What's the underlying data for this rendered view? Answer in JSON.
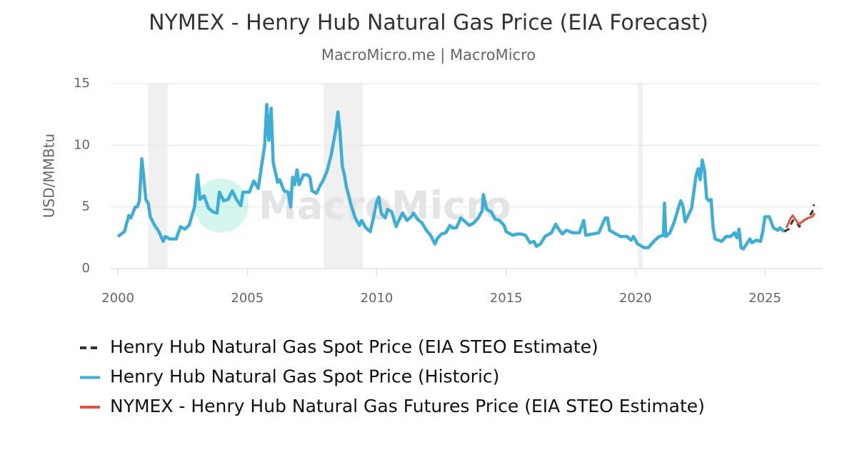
{
  "chart_data": {
    "type": "line",
    "title": "NYMEX - Henry Hub Natural Gas Price (EIA Forecast)",
    "subtitle": "MacroMicro.me | MacroMicro",
    "watermark": "MacroMicro",
    "y_label": "USD/MMBtu",
    "xlim": [
      1999.72,
      2027.18
    ],
    "xticks": [
      2000,
      2005,
      2010,
      2015,
      2020,
      2025
    ],
    "ylim": [
      0,
      15
    ],
    "yticks": [
      0,
      5,
      10,
      15
    ],
    "grid": true,
    "shaded_periods": [
      [
        2001.17,
        2001.92
      ],
      [
        2007.95,
        2009.46
      ],
      [
        2020.09,
        2020.28
      ]
    ],
    "series": [
      {
        "name": "Henry Hub Natural Gas Spot Price (EIA STEO Estimate)",
        "color": "#333333",
        "style": "dashed",
        "x": [
          2025.75,
          2025.92,
          2026.08,
          2026.25,
          2026.33,
          2026.5,
          2026.67,
          2026.83,
          2026.9
        ],
        "values": [
          3.0,
          3.2,
          3.9,
          3.7,
          3.4,
          3.9,
          4.1,
          4.6,
          5.2
        ]
      },
      {
        "name": "Henry Hub Natural Gas Spot Price (Historic)",
        "color": "#3eaed6",
        "style": "solid",
        "x": [
          2000.0,
          2000.25,
          2000.42,
          2000.5,
          2000.67,
          2000.75,
          2000.83,
          2000.92,
          2000.96,
          2001.08,
          2001.17,
          2001.25,
          2001.42,
          2001.58,
          2001.75,
          2001.83,
          2002.0,
          2002.25,
          2002.42,
          2002.58,
          2002.75,
          2002.83,
          2002.96,
          2003.08,
          2003.17,
          2003.33,
          2003.5,
          2003.67,
          2003.83,
          2003.92,
          2004.08,
          2004.25,
          2004.42,
          2004.58,
          2004.75,
          2004.83,
          2004.92,
          2005.08,
          2005.25,
          2005.42,
          2005.5,
          2005.67,
          2005.75,
          2005.83,
          2005.92,
          2006.0,
          2006.17,
          2006.25,
          2006.42,
          2006.58,
          2006.67,
          2006.75,
          2006.83,
          2006.92,
          2007.0,
          2007.17,
          2007.33,
          2007.42,
          2007.5,
          2007.67,
          2007.83,
          2007.92,
          2008.08,
          2008.25,
          2008.42,
          2008.5,
          2008.58,
          2008.67,
          2008.75,
          2008.83,
          2008.92,
          2009.0,
          2009.17,
          2009.33,
          2009.42,
          2009.58,
          2009.75,
          2009.83,
          2010.0,
          2010.08,
          2010.17,
          2010.33,
          2010.42,
          2010.58,
          2010.75,
          2010.83,
          2011.0,
          2011.17,
          2011.33,
          2011.42,
          2011.58,
          2011.75,
          2011.92,
          2012.08,
          2012.25,
          2012.33,
          2012.5,
          2012.67,
          2012.83,
          2012.92,
          2013.08,
          2013.25,
          2013.42,
          2013.58,
          2013.75,
          2013.92,
          2014.08,
          2014.12,
          2014.25,
          2014.42,
          2014.58,
          2014.75,
          2014.92,
          2015.0,
          2015.25,
          2015.42,
          2015.58,
          2015.75,
          2015.92,
          2016.08,
          2016.17,
          2016.33,
          2016.5,
          2016.75,
          2016.92,
          2017.0,
          2017.17,
          2017.33,
          2017.58,
          2017.83,
          2018.0,
          2018.08,
          2018.33,
          2018.58,
          2018.83,
          2018.92,
          2019.0,
          2019.17,
          2019.42,
          2019.67,
          2019.83,
          2019.92,
          2020.08,
          2020.33,
          2020.5,
          2020.75,
          2020.92,
          2021.08,
          2021.12,
          2021.17,
          2021.33,
          2021.5,
          2021.67,
          2021.75,
          2021.83,
          2021.92,
          2022.08,
          2022.17,
          2022.33,
          2022.42,
          2022.5,
          2022.58,
          2022.67,
          2022.75,
          2022.83,
          2022.92,
          2023.0,
          2023.08,
          2023.33,
          2023.5,
          2023.67,
          2023.83,
          2023.92,
          2024.0,
          2024.08,
          2024.17,
          2024.42,
          2024.5,
          2024.67,
          2024.83,
          2024.92,
          2025.0,
          2025.17,
          2025.33,
          2025.5,
          2025.58,
          2025.75
        ],
        "values": [
          2.6,
          3.0,
          4.3,
          4.1,
          5.0,
          5.0,
          5.5,
          8.9,
          8.2,
          5.6,
          5.3,
          4.2,
          3.5,
          3.0,
          2.2,
          2.6,
          2.4,
          2.4,
          3.4,
          3.2,
          3.5,
          4.1,
          5.0,
          7.6,
          5.6,
          5.9,
          4.9,
          4.6,
          4.5,
          6.2,
          5.5,
          5.6,
          6.3,
          5.6,
          5.1,
          6.2,
          6.2,
          6.2,
          7.1,
          6.5,
          7.6,
          10.0,
          13.3,
          10.4,
          13.0,
          8.6,
          7.0,
          7.2,
          6.3,
          6.2,
          5.0,
          7.4,
          6.8,
          8.0,
          6.8,
          7.6,
          7.6,
          7.4,
          6.3,
          6.1,
          6.8,
          7.1,
          7.9,
          9.3,
          11.3,
          12.7,
          11.1,
          8.3,
          7.6,
          6.6,
          5.9,
          5.2,
          4.1,
          3.5,
          3.9,
          3.3,
          3.0,
          3.7,
          5.4,
          5.8,
          4.5,
          4.1,
          4.8,
          4.6,
          3.4,
          3.8,
          4.5,
          3.9,
          4.2,
          4.5,
          4.0,
          3.7,
          3.1,
          2.7,
          2.0,
          2.4,
          2.8,
          2.9,
          3.5,
          3.3,
          3.3,
          4.1,
          3.8,
          3.5,
          3.7,
          4.1,
          4.7,
          6.0,
          4.8,
          4.6,
          4.0,
          3.9,
          3.5,
          3.0,
          2.7,
          2.8,
          2.8,
          2.7,
          2.1,
          2.2,
          1.8,
          2.0,
          2.6,
          2.9,
          3.6,
          3.3,
          2.8,
          3.1,
          2.9,
          2.9,
          3.9,
          2.7,
          2.8,
          2.9,
          4.1,
          4.1,
          3.1,
          2.9,
          2.6,
          2.6,
          2.3,
          2.6,
          2.0,
          1.7,
          1.7,
          2.3,
          2.6,
          2.7,
          5.3,
          2.6,
          2.9,
          3.8,
          5.0,
          5.5,
          5.1,
          3.8,
          4.5,
          4.9,
          7.4,
          8.1,
          7.2,
          8.8,
          7.9,
          5.7,
          5.5,
          5.6,
          3.3,
          2.4,
          2.2,
          2.6,
          2.6,
          2.9,
          2.5,
          3.2,
          1.7,
          1.6,
          2.4,
          2.1,
          2.3,
          2.2,
          3.0,
          4.2,
          4.2,
          3.3,
          3.1,
          3.3,
          3.0
        ]
      },
      {
        "name": "NYMEX - Henry Hub Natural Gas Futures Price (EIA STEO Estimate)",
        "color": "#e0533c",
        "style": "solid",
        "x": [
          2025.83,
          2026.0,
          2026.08,
          2026.17,
          2026.33,
          2026.5,
          2026.67,
          2026.83,
          2026.92
        ],
        "values": [
          3.3,
          4.1,
          4.3,
          4.0,
          3.6,
          3.9,
          4.1,
          4.2,
          4.5
        ]
      }
    ]
  }
}
